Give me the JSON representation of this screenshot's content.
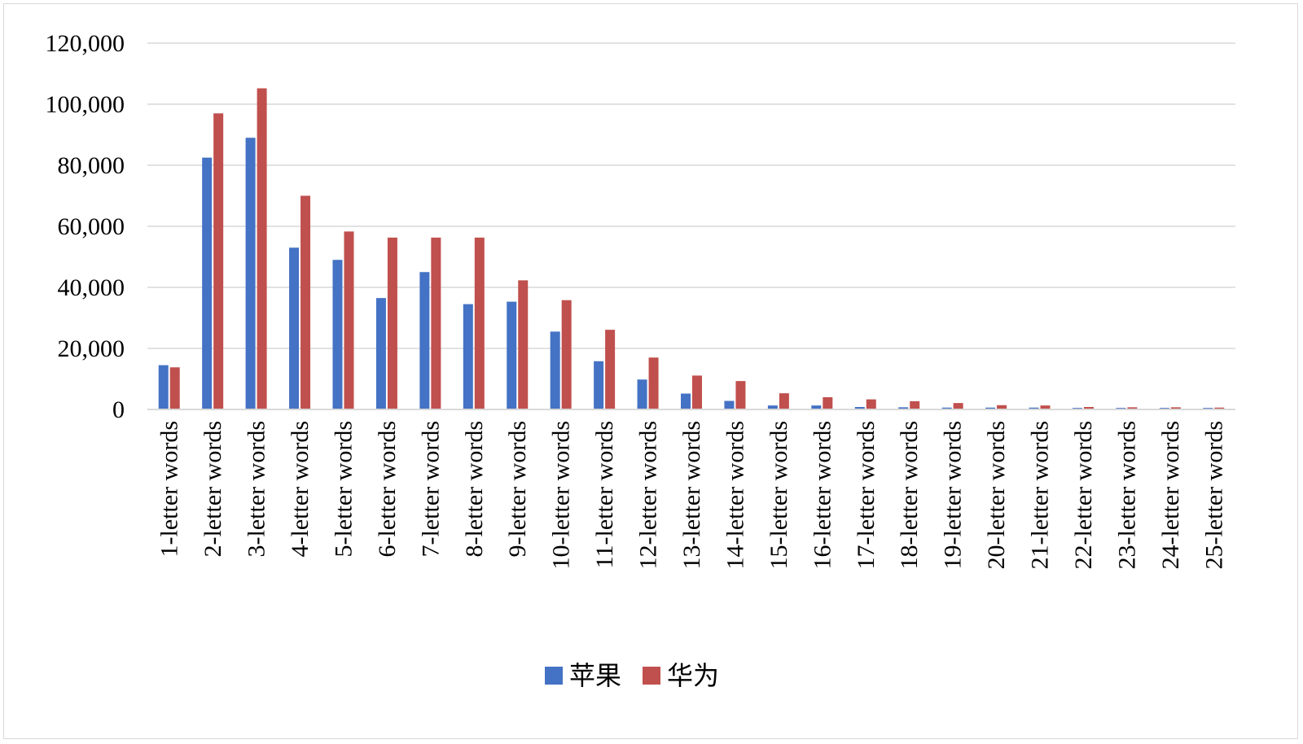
{
  "chart_data": {
    "type": "bar",
    "title": "",
    "xlabel": "",
    "ylabel": "",
    "ylim": [
      0,
      120000
    ],
    "yticks": [
      0,
      20000,
      40000,
      60000,
      80000,
      100000,
      120000
    ],
    "ytick_labels": [
      "0",
      "20,000",
      "40,000",
      "60,000",
      "80,000",
      "100,000",
      "120,000"
    ],
    "grid": true,
    "legend_position": "bottom",
    "categories": [
      "1-letter words",
      "2-letter words",
      "3-letter words",
      "4-letter words",
      "5-letter words",
      "6-letter words",
      "7-letter words",
      "8-letter words",
      "9-letter words",
      "10-letter words",
      "11-letter words",
      "12-letter words",
      "13-letter words",
      "14-letter words",
      "15-letter words",
      "16-letter words",
      "17-letter words",
      "18-letter words",
      "19-letter words",
      "20-letter words",
      "21-letter words",
      "22-letter words",
      "23-letter words",
      "24-letter words",
      "25-letter words"
    ],
    "series": [
      {
        "name": "苹果",
        "color": "#4472c4",
        "values": [
          14500,
          82500,
          89000,
          53000,
          49000,
          36500,
          45000,
          34500,
          35300,
          25500,
          15800,
          9800,
          5200,
          2800,
          1300,
          1300,
          800,
          700,
          600,
          600,
          600,
          500,
          500,
          500,
          500
        ]
      },
      {
        "name": "华为",
        "color": "#c0504d",
        "values": [
          13800,
          97000,
          105200,
          70000,
          58300,
          56300,
          56300,
          56300,
          42300,
          35800,
          26100,
          17000,
          11100,
          9300,
          5300,
          4000,
          3300,
          2700,
          2100,
          1400,
          1300,
          800,
          700,
          700,
          600
        ]
      }
    ]
  }
}
